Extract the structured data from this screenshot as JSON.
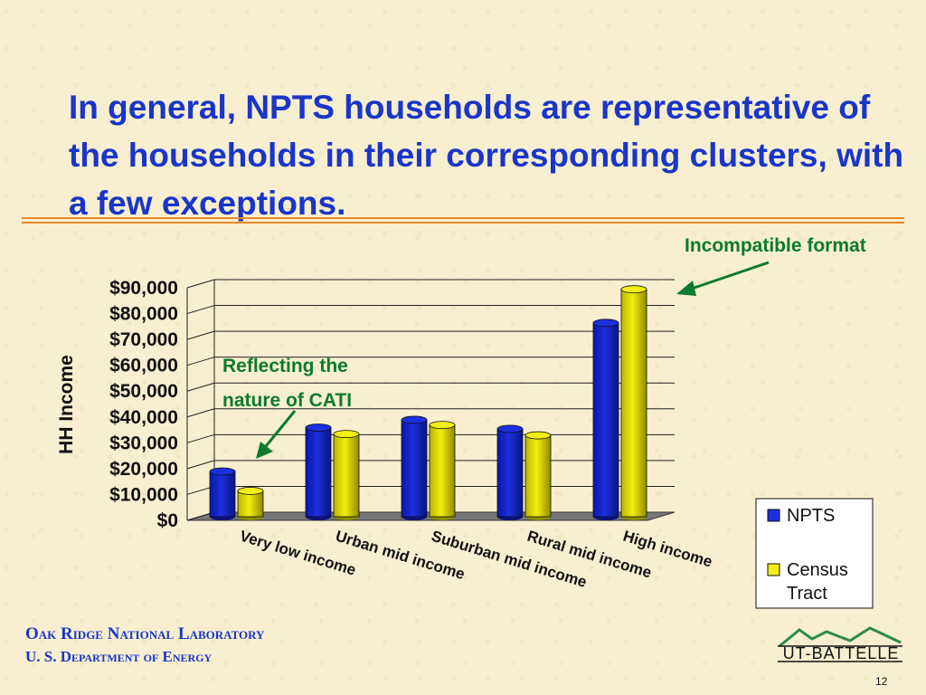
{
  "slide": {
    "title": "In general, NPTS households are representative of the households in their corresponding clusters, with a few exceptions.",
    "note_incompatible": "Incompatible format",
    "note_cati": [
      "Reflecting the",
      "nature of CATI"
    ],
    "footer_lab": "Oak Ridge National Laboratory",
    "footer_dept": "U. S. Department of Energy",
    "logo_text": "UT-BATTELLE",
    "page_number": "12"
  },
  "colors": {
    "title": "#1a35c8",
    "rule": "#e5892d",
    "annotation": "#0c7a2e",
    "npts": "#1c2fe0",
    "census": "#f2ee10"
  },
  "chart_data": {
    "type": "bar",
    "categories": [
      "Very low income",
      "Urban mid income",
      "Suburban mid income",
      "Rural mid income",
      "High income"
    ],
    "series": [
      {
        "name": "NPTS",
        "values": [
          17500,
          34500,
          37500,
          34000,
          75000
        ]
      },
      {
        "name": "Census Tract",
        "values": [
          10000,
          32000,
          35500,
          31500,
          88000
        ]
      }
    ],
    "xlabel": "",
    "ylabel": "HH Income",
    "ylim": [
      0,
      90000
    ],
    "yticks": [
      "$0",
      "$10,000",
      "$20,000",
      "$30,000",
      "$40,000",
      "$50,000",
      "$60,000",
      "$70,000",
      "$80,000",
      "$90,000"
    ],
    "grid": true,
    "legend_position": "right"
  }
}
